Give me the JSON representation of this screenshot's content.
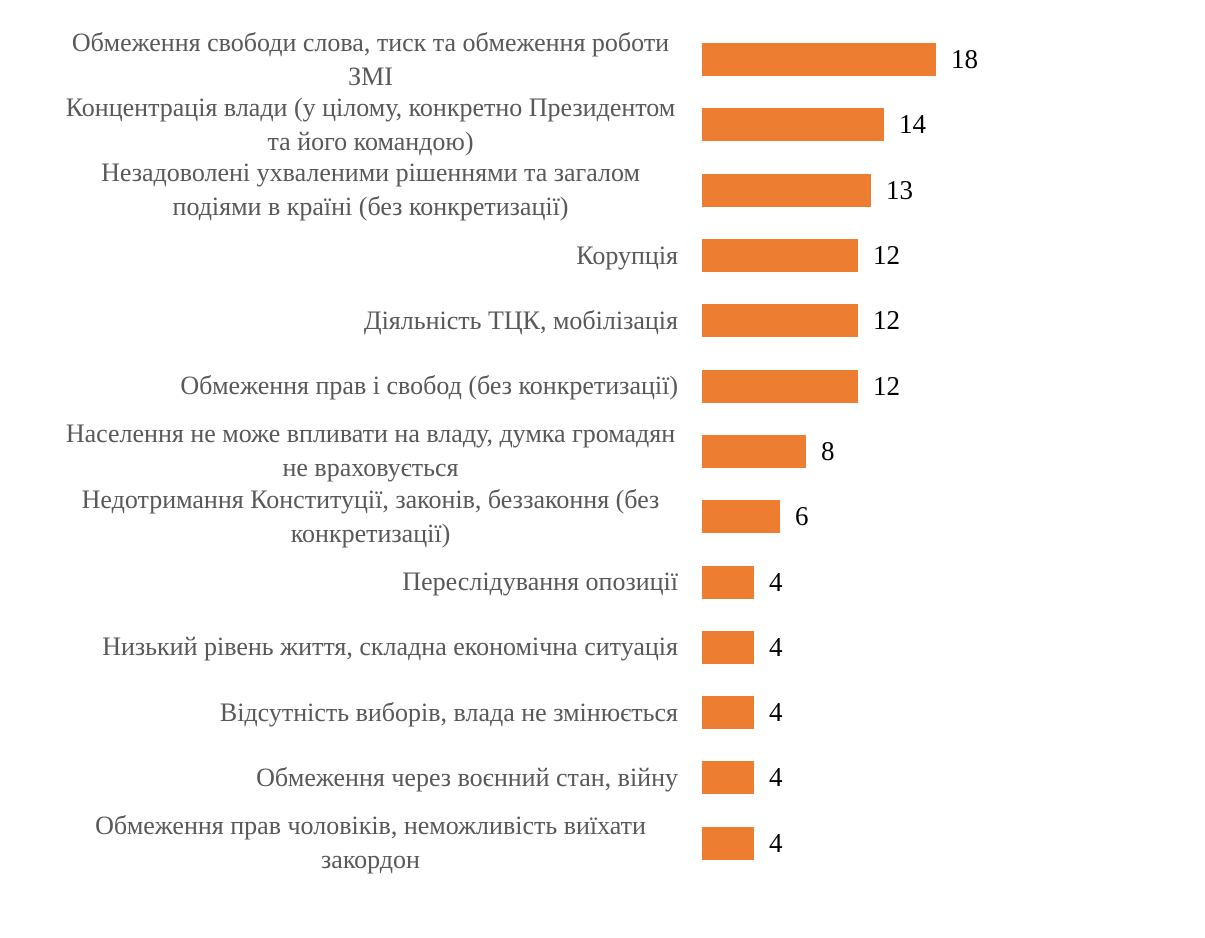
{
  "chart_data": {
    "type": "bar",
    "orientation": "horizontal",
    "title": "",
    "subtitle": "",
    "xlabel": "",
    "ylabel": "",
    "xlim": [
      0,
      18
    ],
    "grid": false,
    "legend": false,
    "axes_visible": false,
    "value_labels_position": "outside-end",
    "bar_color": "#ED7D31",
    "category_label_color": "#595959",
    "value_label_color": "#000000",
    "background_color": "#FFFFFF",
    "categories": [
      "Обмеження свободи слова, тиск та обмеження роботи ЗМІ",
      "Концентрація влади (у цілому, конкретно Президентом та його командою)",
      "Незадоволені ухваленими рішеннями та загалом подіями в країні (без конкретизації)",
      "Корупція",
      "Діяльність ТЦК, мобілізація",
      "Обмеження прав і свобод (без конкретизації)",
      "Населення не може впливати на владу, думка громадян не враховується",
      "Недотримання Конституції, законів, беззаконня (без конкретизації)",
      "Переслідування опозиції",
      "Низький рівень життя, складна економічна ситуація",
      "Відсутність виборів, влада не змінюється",
      "Обмеження через воєнний стан, війну",
      "Обмеження прав чоловіків, неможливість виїхати закордон"
    ],
    "values": [
      18,
      14,
      13,
      12,
      12,
      12,
      8,
      6,
      4,
      4,
      4,
      4,
      4
    ]
  }
}
